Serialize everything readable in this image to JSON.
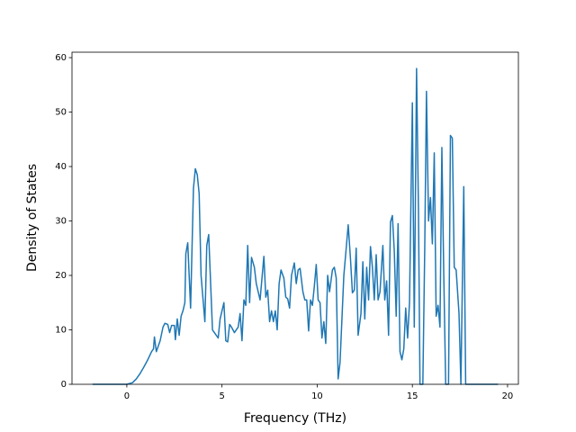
{
  "chart_data": {
    "type": "line",
    "x_label": "Frequency (THz)",
    "y_label": "Density of States",
    "x": [
      -1.8,
      0,
      0.3,
      0.5,
      0.7,
      0.9,
      1.1,
      1.3,
      1.4,
      1.45,
      1.55,
      1.75,
      1.9,
      2.0,
      2.15,
      2.25,
      2.35,
      2.5,
      2.55,
      2.65,
      2.75,
      2.85,
      2.95,
      3.05,
      3.1,
      3.2,
      3.35,
      3.5,
      3.6,
      3.7,
      3.8,
      3.9,
      4.1,
      4.2,
      4.3,
      4.5,
      4.7,
      4.8,
      4.9,
      5.1,
      5.2,
      5.3,
      5.4,
      5.5,
      5.65,
      5.85,
      5.95,
      6.05,
      6.15,
      6.25,
      6.35,
      6.45,
      6.55,
      6.7,
      6.8,
      7.0,
      7.2,
      7.3,
      7.4,
      7.5,
      7.6,
      7.7,
      7.8,
      7.9,
      8.0,
      8.1,
      8.25,
      8.35,
      8.45,
      8.55,
      8.65,
      8.8,
      8.9,
      9.0,
      9.1,
      9.25,
      9.35,
      9.45,
      9.55,
      9.65,
      9.75,
      9.85,
      9.95,
      10.05,
      10.15,
      10.25,
      10.35,
      10.45,
      10.55,
      10.65,
      10.8,
      10.9,
      11.0,
      11.1,
      11.2,
      11.3,
      11.4,
      11.5,
      11.63,
      11.75,
      11.85,
      11.95,
      12.05,
      12.15,
      12.3,
      12.4,
      12.5,
      12.6,
      12.7,
      12.8,
      12.9,
      13.0,
      13.1,
      13.2,
      13.3,
      13.45,
      13.55,
      13.65,
      13.75,
      13.85,
      13.95,
      14.05,
      14.15,
      14.25,
      14.35,
      14.45,
      14.55,
      14.65,
      14.75,
      14.85,
      15.0,
      15.1,
      15.22,
      15.32,
      15.4,
      15.55,
      15.65,
      15.74,
      15.85,
      15.95,
      16.05,
      16.15,
      16.25,
      16.35,
      16.45,
      16.55,
      16.65,
      16.75,
      16.9,
      17.0,
      17.1,
      17.2,
      17.3,
      17.45,
      17.55,
      17.7,
      17.8,
      19.5
    ],
    "series": [
      {
        "color": "#1f77b4",
        "values": [
          0,
          0,
          0.3,
          1,
          2,
          3.2,
          4.5,
          6,
          6.5,
          8.7,
          6,
          8,
          10.5,
          11.2,
          11,
          9.5,
          10.8,
          10.8,
          8.2,
          12,
          9,
          12.5,
          13.5,
          15,
          24,
          26,
          14,
          36,
          39.6,
          38.5,
          35,
          20,
          11.5,
          25.5,
          27.5,
          10,
          9,
          8.5,
          12,
          15,
          8,
          7.8,
          11,
          10.5,
          9.5,
          10.5,
          13,
          8,
          15.5,
          14.5,
          25.5,
          15,
          23.3,
          21.5,
          18.5,
          15.5,
          23.5,
          16,
          17.3,
          11.5,
          13.5,
          11.5,
          13.5,
          10,
          18.5,
          21,
          19.5,
          16,
          15.7,
          14,
          20,
          22.3,
          18.5,
          21,
          21.3,
          17,
          15.5,
          15.5,
          9.8,
          15.5,
          14.5,
          18,
          22,
          15.5,
          15,
          8.5,
          11.5,
          7.5,
          20,
          17,
          21,
          21.5,
          19.5,
          1,
          4,
          12,
          20,
          24,
          29.3,
          23,
          16.8,
          17.3,
          25,
          9,
          13,
          22.5,
          12,
          21.5,
          15.5,
          25.3,
          21.5,
          15.5,
          23.8,
          15.5,
          17,
          25.5,
          15.5,
          19,
          9,
          29.8,
          31,
          24.5,
          12.5,
          29.5,
          6,
          4.5,
          6.5,
          14,
          8.5,
          15,
          51.7,
          10.5,
          58,
          32,
          0,
          0,
          25,
          53.8,
          30,
          34.3,
          25.8,
          42.5,
          12.5,
          14.5,
          10.5,
          43.5,
          20,
          0,
          0,
          45.7,
          45.2,
          21.5,
          21,
          13,
          0,
          36.3,
          0,
          0
        ]
      }
    ],
    "xlim": [
      -2.88,
      20.57
    ],
    "ylim": [
      0,
      61
    ],
    "xticks": [
      0,
      5,
      10,
      15,
      20
    ],
    "yticks": [
      0,
      10,
      20,
      30,
      40,
      50,
      60
    ]
  }
}
